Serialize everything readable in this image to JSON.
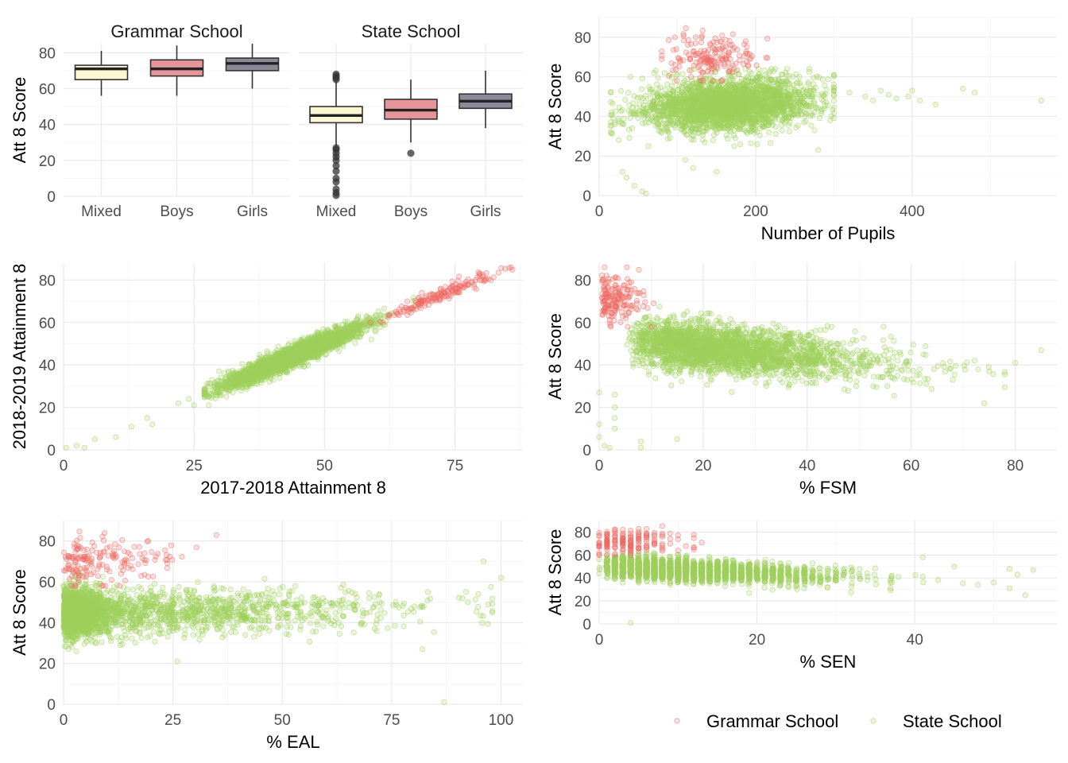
{
  "colors": {
    "grammar": "#ef6a63",
    "state": "#9fd05c",
    "box_mixed": "#faf7d2",
    "box_boys": "#e6959a",
    "box_girls": "#8a8a9a",
    "grid": "#ebebeb"
  },
  "legend": {
    "items": [
      {
        "label": "Grammar School",
        "color_key": "grammar"
      },
      {
        "label": "State School",
        "color_key": "state"
      }
    ]
  },
  "chart_data": [
    {
      "id": "boxplot",
      "type": "box",
      "ylabel": "Att 8 Score",
      "ylim": [
        0,
        85
      ],
      "yticks": [
        0,
        20,
        40,
        60,
        80
      ],
      "facets": [
        {
          "label": "Grammar School",
          "categories": [
            "Mixed",
            "Boys",
            "Girls"
          ],
          "boxes": [
            {
              "category": "Mixed",
              "min": 56,
              "q1": 65,
              "median": 71,
              "q3": 73,
              "max": 81,
              "outliers": []
            },
            {
              "category": "Boys",
              "min": 56,
              "q1": 67,
              "median": 71,
              "q3": 76,
              "max": 84,
              "outliers": []
            },
            {
              "category": "Girls",
              "min": 60,
              "q1": 70,
              "median": 74,
              "q3": 77,
              "max": 85,
              "outliers": []
            }
          ]
        },
        {
          "label": "State School",
          "categories": [
            "Mixed",
            "Boys",
            "Girls"
          ],
          "boxes": [
            {
              "category": "Mixed",
              "min": 28,
              "q1": 41,
              "median": 45,
              "q3": 50,
              "max": 64,
              "outliers": [
                0.5,
                2,
                4,
                8,
                10,
                14,
                17,
                20,
                22,
                24,
                26,
                27,
                65,
                66,
                67,
                68
              ]
            },
            {
              "category": "Boys",
              "min": 30,
              "q1": 43,
              "median": 48,
              "q3": 54,
              "max": 65,
              "outliers": [
                24
              ]
            },
            {
              "category": "Girls",
              "min": 38,
              "q1": 49,
              "median": 53,
              "q3": 57,
              "max": 70,
              "outliers": []
            }
          ]
        }
      ]
    },
    {
      "id": "pupils",
      "type": "scatter",
      "xlabel": "Number of Pupils",
      "ylabel": "Att 8 Score",
      "xlim": [
        0,
        585
      ],
      "ylim": [
        0,
        90
      ],
      "xticks": [
        0,
        200,
        400
      ],
      "yticks": [
        0,
        20,
        40,
        60,
        80
      ]
    },
    {
      "id": "prior",
      "type": "scatter",
      "xlabel": "2017-2018 Attainment 8",
      "ylabel": "2018-2019 Attainment 8",
      "xlim": [
        0,
        88
      ],
      "ylim": [
        0,
        88
      ],
      "xticks": [
        0,
        25,
        50,
        75
      ],
      "yticks": [
        0,
        20,
        40,
        60,
        80
      ]
    },
    {
      "id": "fsm",
      "type": "scatter",
      "xlabel": "% FSM",
      "ylabel": "Att 8 Score",
      "xlim": [
        0,
        88
      ],
      "ylim": [
        0,
        88
      ],
      "xticks": [
        0,
        20,
        40,
        60,
        80
      ],
      "yticks": [
        0,
        20,
        40,
        60,
        80
      ]
    },
    {
      "id": "eal",
      "type": "scatter",
      "xlabel": "% EAL",
      "ylabel": "Att 8 Score",
      "xlim": [
        0,
        105
      ],
      "ylim": [
        0,
        90
      ],
      "xticks": [
        0,
        25,
        50,
        75,
        100
      ],
      "yticks": [
        0,
        20,
        40,
        60,
        80
      ]
    },
    {
      "id": "sen",
      "type": "scatter",
      "xlabel": "% SEN",
      "ylabel": "Att 8 Score",
      "xlim": [
        0,
        58
      ],
      "ylim": [
        0,
        90
      ],
      "xticks": [
        0,
        20,
        40
      ],
      "yticks": [
        0,
        20,
        40,
        60,
        80
      ]
    }
  ]
}
